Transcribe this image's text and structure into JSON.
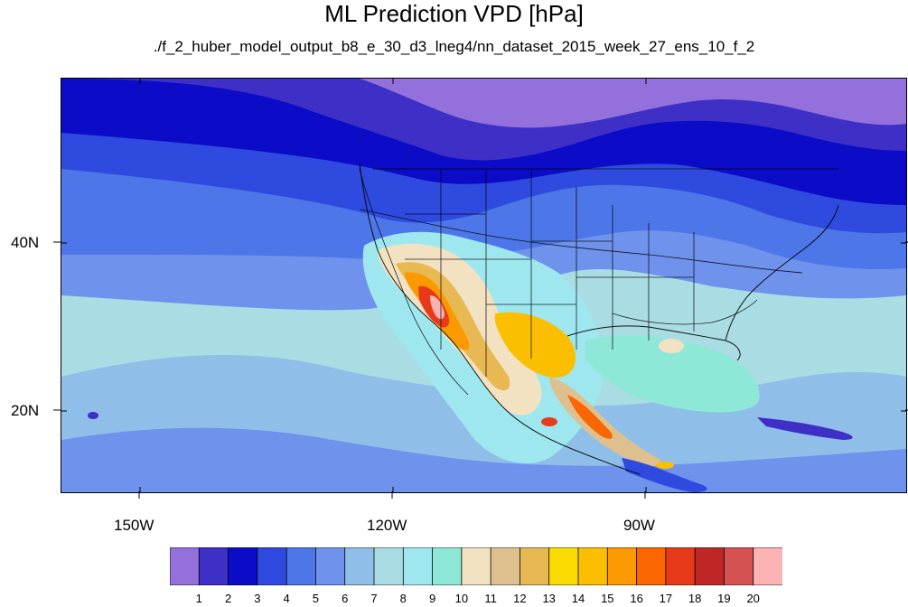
{
  "title": "ML Prediction VPD [hPa]",
  "subtitle": "./f_2_huber_model_output_b8_e_30_d3_lneg4/nn_dataset_2015_week_27_ens_10_f_2",
  "map": {
    "lon_labels": [
      "150W",
      "120W",
      "90W"
    ],
    "lat_labels": [
      "40N",
      "20N"
    ]
  },
  "colorbar": {
    "labels": [
      "1",
      "2",
      "3",
      "4",
      "5",
      "6",
      "7",
      "8",
      "9",
      "10",
      "11",
      "12",
      "13",
      "14",
      "15",
      "16",
      "17",
      "18",
      "19",
      "20"
    ],
    "colors": [
      "#9370db",
      "#3e2fc7",
      "#0b0bc8",
      "#2f4bdf",
      "#4d76e8",
      "#6f92ec",
      "#8fbfe8",
      "#a9dce3",
      "#9fe7ef",
      "#8ee8d8",
      "#f2e2c1",
      "#dec08e",
      "#e8b853",
      "#fbdb00",
      "#fbbf00",
      "#fb9a00",
      "#fb6600",
      "#e83a1a",
      "#bf2626",
      "#d45252",
      "#fbb3b3"
    ]
  }
}
